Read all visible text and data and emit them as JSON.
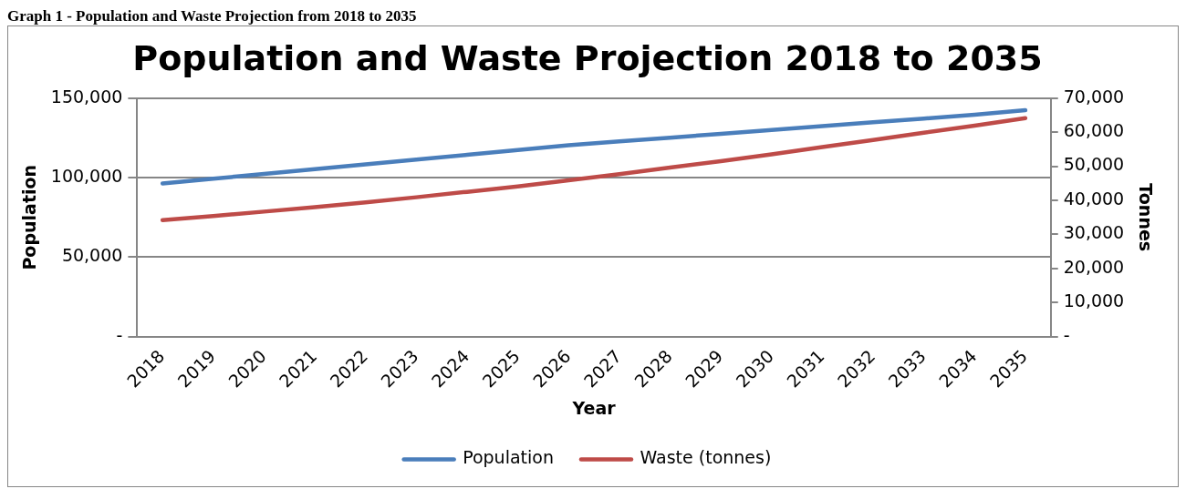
{
  "chart_data": {
    "type": "line",
    "title": "Population and Waste Projection 2018 to 2035",
    "annotations": [
      "Graph 1 - Population and Waste Projection from 2018 to 2035"
    ],
    "xlabel": "Year",
    "ylabel": "Population",
    "y2label": "Tonnes",
    "categories": [
      "2018",
      "2019",
      "2020",
      "2021",
      "2022",
      "2023",
      "2024",
      "2025",
      "2026",
      "2027",
      "2028",
      "2029",
      "2030",
      "2031",
      "2032",
      "2033",
      "2034",
      "2035"
    ],
    "series": [
      {
        "name": "Population",
        "color": "#4a7ebb",
        "values": [
          96300,
          99300,
          102300,
          105300,
          108300,
          111300,
          114300,
          117300,
          120300,
          122700,
          125100,
          127500,
          129900,
          132300,
          134700,
          137100,
          139500,
          142300
        ]
      },
      {
        "name": "Waste (tonnes)",
        "color": "#be4b48",
        "axis": "y2",
        "values": [
          34200,
          35400,
          36700,
          38000,
          39400,
          40900,
          42500,
          44100,
          45900,
          47700,
          49600,
          51500,
          53500,
          55600,
          57700,
          59800,
          61900,
          64100
        ]
      }
    ],
    "ylim": [
      0,
      150000
    ],
    "yticks": [
      {
        "value": 0,
        "label": "-"
      },
      {
        "value": 50000,
        "label": "50,000"
      },
      {
        "value": 100000,
        "label": "100,000"
      },
      {
        "value": 150000,
        "label": "150,000"
      }
    ],
    "y2lim": [
      0,
      70000
    ],
    "y2ticks": [
      {
        "value": 0,
        "label": "-"
      },
      {
        "value": 10000,
        "label": "10,000"
      },
      {
        "value": 20000,
        "label": "20,000"
      },
      {
        "value": 30000,
        "label": "30,000"
      },
      {
        "value": 40000,
        "label": "40,000"
      },
      {
        "value": 50000,
        "label": "50,000"
      },
      {
        "value": 60000,
        "label": "60,000"
      },
      {
        "value": 70000,
        "label": "70,000"
      }
    ],
    "grid": "y",
    "legend": "bottom",
    "marker": "none",
    "line_style": "solid"
  }
}
